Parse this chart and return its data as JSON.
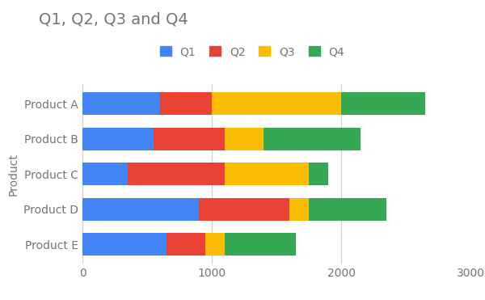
{
  "title": "Q1, Q2, Q3 and Q4",
  "ylabel": "Product",
  "categories": [
    "Product A",
    "Product B",
    "Product C",
    "Product D",
    "Product E"
  ],
  "quarters": [
    "Q1",
    "Q2",
    "Q3",
    "Q4"
  ],
  "values": {
    "Q1": [
      600,
      550,
      350,
      900,
      650
    ],
    "Q2": [
      400,
      550,
      750,
      700,
      300
    ],
    "Q3": [
      1000,
      300,
      650,
      150,
      150
    ],
    "Q4": [
      650,
      750,
      150,
      600,
      550
    ]
  },
  "colors": {
    "Q1": "#4285F4",
    "Q2": "#EA4335",
    "Q3": "#FBBC04",
    "Q4": "#34A853"
  },
  "xlim": [
    0,
    3000
  ],
  "xticks": [
    0,
    1000,
    2000,
    3000
  ],
  "title_fontsize": 14,
  "title_color": "#757575",
  "axis_label_color": "#757575",
  "tick_label_color": "#757575",
  "background_color": "#ffffff",
  "bar_height": 0.65,
  "legend_fontsize": 10,
  "grid_color": "#cccccc"
}
